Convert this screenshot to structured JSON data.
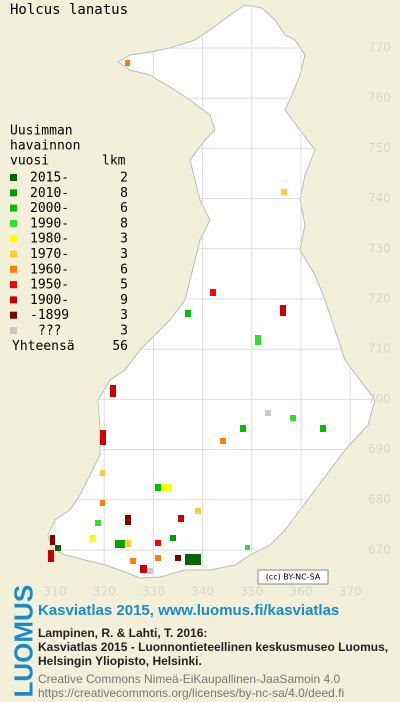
{
  "title": "Holcus lanatus",
  "legend": {
    "heading": [
      "Uusimman",
      "havainnon"
    ],
    "col_year": "vuosi",
    "col_count": "lkm",
    "rows": [
      {
        "label": "2015-",
        "count": 2,
        "color": "#006400"
      },
      {
        "label": "2010-",
        "count": 8,
        "color": "#00a000"
      },
      {
        "label": "2000-",
        "count": 6,
        "color": "#00c000"
      },
      {
        "label": "1990-",
        "count": 8,
        "color": "#33dd33"
      },
      {
        "label": "1980-",
        "count": 3,
        "color": "#ffff00"
      },
      {
        "label": "1970-",
        "count": 3,
        "color": "#ffcc33"
      },
      {
        "label": "1960-",
        "count": 6,
        "color": "#ff8000"
      },
      {
        "label": "1950-",
        "count": 5,
        "color": "#ff0000"
      },
      {
        "label": "1900-",
        "count": 9,
        "color": "#cc0000"
      },
      {
        "label": "-1899",
        "count": 3,
        "color": "#800000"
      },
      {
        "label": "???",
        "count": 3,
        "color": "#c8c8c8"
      }
    ],
    "total_label": "Yhteensä",
    "total": 56
  },
  "map": {
    "y_labels": [
      770,
      760,
      750,
      740,
      730,
      720,
      710,
      700,
      690,
      680,
      670
    ],
    "x_labels": [
      310,
      320,
      330,
      340,
      350,
      360,
      370
    ]
  },
  "badge": "(cc) BY-NC-SA",
  "footer": {
    "logo": "LUOMUS",
    "headline": "Kasviatlas 2015, www.luomus.fi/kasviatlas",
    "citation": [
      "Lampinen, R. & Lahti, T. 2016:",
      "Kasviatlas 2015 - Luonnontieteellinen keskusmuseo Luomus,",
      "Helsingin Yliopisto, Helsinki."
    ],
    "license": [
      "Creative Commons Nimeä-EiKaupallinen-JaaSamoin 4.0",
      "https://creativecommons.org/licenses/by-nc-sa/4.0/deed.fi"
    ]
  }
}
